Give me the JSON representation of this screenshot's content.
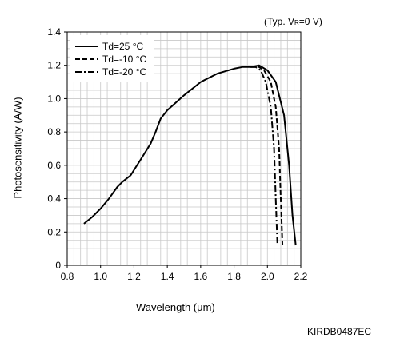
{
  "condition": {
    "prefix": "(Typ. V",
    "sub": "R",
    "suffix": "=0 V)"
  },
  "figure_code": "KIRDB0487EC",
  "chart_data": {
    "type": "line",
    "title": "",
    "xlabel": "Wavelength (μm)",
    "ylabel": "Photosensitivity (A/W)",
    "xlim": [
      0.8,
      2.2
    ],
    "ylim": [
      0,
      1.4
    ],
    "xticks": [
      "0.8",
      "1.0",
      "1.2",
      "1.4",
      "1.6",
      "1.8",
      "2.0",
      "2.2"
    ],
    "yticks": [
      "0",
      "0.2",
      "0.4",
      "0.6",
      "0.8",
      "1.0",
      "1.2",
      "1.4"
    ],
    "grid": true,
    "legend_position": "top-left",
    "series": [
      {
        "name": "Td=25 °C",
        "style": "solid",
        "x": [
          0.9,
          0.95,
          1.0,
          1.05,
          1.1,
          1.13,
          1.18,
          1.25,
          1.3,
          1.33,
          1.36,
          1.4,
          1.5,
          1.6,
          1.7,
          1.8,
          1.85,
          1.9,
          1.95,
          2.0,
          2.05,
          2.1,
          2.13,
          2.15,
          2.17
        ],
        "y": [
          0.25,
          0.29,
          0.34,
          0.4,
          0.47,
          0.5,
          0.54,
          0.65,
          0.73,
          0.8,
          0.88,
          0.93,
          1.02,
          1.1,
          1.15,
          1.18,
          1.19,
          1.19,
          1.2,
          1.17,
          1.1,
          0.9,
          0.6,
          0.3,
          0.12
        ]
      },
      {
        "name": "Td=-10 °C",
        "style": "dashed",
        "x": [
          1.9,
          1.95,
          1.98,
          2.02,
          2.05,
          2.07,
          2.08,
          2.09
        ],
        "y": [
          1.19,
          1.19,
          1.17,
          1.1,
          0.95,
          0.7,
          0.4,
          0.12
        ]
      },
      {
        "name": "Td=-20 °C",
        "style": "dashdot",
        "x": [
          1.9,
          1.93,
          1.96,
          1.99,
          2.02,
          2.04,
          2.05,
          2.06
        ],
        "y": [
          1.19,
          1.19,
          1.17,
          1.1,
          0.95,
          0.7,
          0.4,
          0.12
        ]
      }
    ]
  }
}
